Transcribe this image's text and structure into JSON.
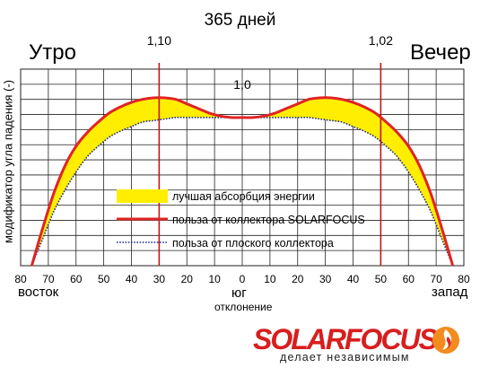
{
  "chart_data": {
    "type": "line",
    "title": "365 дней",
    "ylabel": "модификатор угла падения (-)",
    "xlabel": "отклонение",
    "x_direction_labels": {
      "left": "восток",
      "center": "юг",
      "right": "запад"
    },
    "side_labels": {
      "left": "Утро",
      "right": "Вечер"
    },
    "categories": [
      "80",
      "70",
      "60",
      "50",
      "40",
      "30",
      "20",
      "10",
      "0",
      "10",
      "20",
      "30",
      "40",
      "50",
      "60",
      "70",
      "80"
    ],
    "x": [
      -80,
      -70,
      -60,
      -50,
      -40,
      -30,
      -20,
      -10,
      0,
      10,
      20,
      30,
      40,
      50,
      60,
      70,
      80
    ],
    "xlim": [
      -80,
      80
    ],
    "ylim": [
      0,
      1.3
    ],
    "grid": true,
    "legend_position": "center-left",
    "annotations": [
      {
        "text": "1,10",
        "x": -30,
        "y": 1.1
      },
      {
        "text": "1,02",
        "x": 50,
        "y": 1.02
      },
      {
        "text": "1,0",
        "x": 0,
        "y": 1.0
      }
    ],
    "vertical_markers": [
      -30,
      50
    ],
    "series": [
      {
        "name": "польза от коллектора SOLARFOCUS",
        "style": "solid",
        "color": "#e02424",
        "x": [
          -76,
          -72,
          -68,
          -64,
          -60,
          -56,
          -52,
          -48,
          -44,
          -40,
          -36,
          -32,
          -28,
          -24,
          -20,
          -16,
          -12,
          -8,
          -4,
          0,
          4,
          8,
          12,
          16,
          20,
          24,
          28,
          32,
          36,
          40,
          44,
          48,
          52,
          56,
          60,
          64,
          68,
          72,
          76
        ],
        "values": [
          0.0,
          0.25,
          0.48,
          0.66,
          0.79,
          0.88,
          0.95,
          1.01,
          1.05,
          1.08,
          1.1,
          1.11,
          1.11,
          1.1,
          1.07,
          1.04,
          1.01,
          0.99,
          0.98,
          0.98,
          0.98,
          0.99,
          1.01,
          1.04,
          1.07,
          1.1,
          1.11,
          1.11,
          1.1,
          1.08,
          1.05,
          1.01,
          0.95,
          0.88,
          0.79,
          0.66,
          0.48,
          0.25,
          0.0
        ]
      },
      {
        "name": "польза от плоского коллектора",
        "style": "dotted",
        "color": "#1e2e8c",
        "x": [
          -76,
          -72,
          -68,
          -64,
          -60,
          -56,
          -52,
          -48,
          -44,
          -40,
          -36,
          -32,
          -28,
          -24,
          -20,
          -16,
          -12,
          -8,
          -4,
          0,
          4,
          8,
          12,
          16,
          20,
          24,
          28,
          32,
          36,
          40,
          44,
          48,
          52,
          56,
          60,
          64,
          68,
          72,
          76
        ],
        "values": [
          0.0,
          0.18,
          0.36,
          0.5,
          0.62,
          0.72,
          0.79,
          0.85,
          0.89,
          0.92,
          0.95,
          0.96,
          0.97,
          0.98,
          0.98,
          0.98,
          0.98,
          0.98,
          0.98,
          0.98,
          0.98,
          0.98,
          0.98,
          0.98,
          0.98,
          0.98,
          0.97,
          0.96,
          0.95,
          0.92,
          0.89,
          0.85,
          0.79,
          0.72,
          0.62,
          0.5,
          0.36,
          0.18,
          0.0
        ]
      }
    ],
    "fill_between": {
      "name": "лучшая абсорбция энергии",
      "color": "#ffee00"
    }
  },
  "logo": {
    "brand": "SOLARFOCUS",
    "tagline": "делает независимым"
  }
}
